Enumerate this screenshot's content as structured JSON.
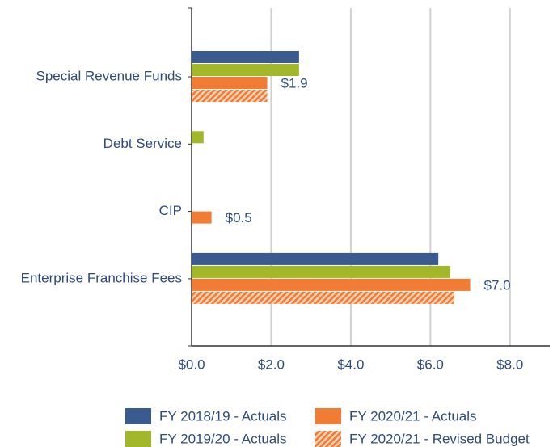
{
  "chart_data": {
    "type": "hbar",
    "categories": [
      "Special Revenue Funds",
      "Debt Service",
      "CIP",
      "Enterprise Franchise Fees"
    ],
    "series": [
      {
        "name": "FY 2018/19 - Actuals",
        "color": "#3b5b8e",
        "values": [
          2.7,
          0,
          0,
          6.2
        ]
      },
      {
        "name": "FY 2019/20 - Actuals",
        "color": "#a3b72a",
        "values": [
          2.7,
          0.3,
          0,
          6.5
        ]
      },
      {
        "name": "FY 2020/21 - Actuals",
        "color": "#f07c35",
        "values": [
          1.9,
          0,
          0.5,
          7.0
        ],
        "value_labels": [
          "$1.9",
          null,
          "$0.5",
          "$7.0"
        ]
      },
      {
        "name": "FY 2020/21 - Revised Budget",
        "color": "#f07c35",
        "pattern": "hatch",
        "values": [
          1.9,
          0,
          0,
          6.6
        ]
      }
    ],
    "xlim": [
      0,
      9
    ],
    "xticks": [
      {
        "value": 0,
        "label": "$0.0"
      },
      {
        "value": 2,
        "label": "$2.0"
      },
      {
        "value": 4,
        "label": "$4.0"
      },
      {
        "value": 6,
        "label": "$6.0"
      },
      {
        "value": 8,
        "label": "$8.0"
      }
    ],
    "grid": true,
    "legend": "bottom"
  }
}
